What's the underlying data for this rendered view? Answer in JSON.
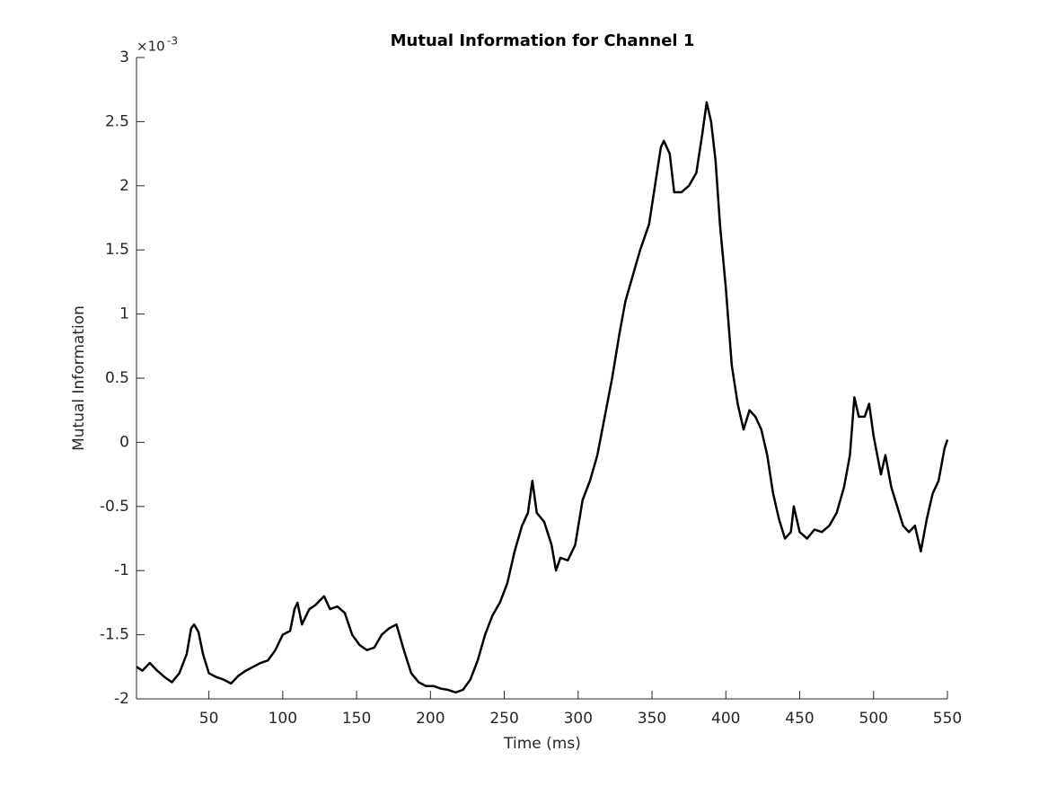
{
  "chart_data": {
    "type": "line",
    "title": "Mutual Information for Channel 1",
    "x_label": "Time (ms)",
    "y_label": "Mutual Information",
    "y_exponent_base": "×10",
    "y_exponent": "-3",
    "xlim": [
      1,
      550
    ],
    "ylim": [
      -2,
      3
    ],
    "xticks": [
      50,
      100,
      150,
      200,
      250,
      300,
      350,
      400,
      450,
      500,
      550
    ],
    "yticks": [
      -2,
      -1.5,
      -1,
      -0.5,
      0,
      0.5,
      1,
      1.5,
      2,
      2.5,
      3
    ],
    "x": [
      1,
      5,
      10,
      15,
      20,
      25,
      30,
      35,
      38,
      40,
      43,
      46,
      50,
      55,
      60,
      65,
      70,
      75,
      80,
      85,
      90,
      95,
      100,
      105,
      108,
      110,
      113,
      118,
      122,
      128,
      132,
      137,
      142,
      147,
      152,
      157,
      162,
      167,
      172,
      177,
      182,
      187,
      192,
      197,
      202,
      207,
      212,
      217,
      222,
      227,
      232,
      237,
      242,
      247,
      252,
      257,
      262,
      266,
      269,
      272,
      277,
      282,
      285,
      288,
      293,
      298,
      303,
      308,
      313,
      318,
      323,
      328,
      332,
      337,
      342,
      345,
      348,
      352,
      356,
      358,
      362,
      365,
      370,
      375,
      380,
      384,
      387,
      390,
      393,
      396,
      400,
      404,
      408,
      412,
      416,
      420,
      424,
      428,
      432,
      436,
      440,
      444,
      446,
      450,
      455,
      460,
      465,
      470,
      475,
      480,
      484,
      487,
      490,
      494,
      497,
      500,
      505,
      508,
      512,
      516,
      520,
      524,
      528,
      532,
      536,
      540,
      544,
      548,
      550
    ],
    "series": [
      {
        "name": "Channel 1",
        "color": "#000000",
        "values": [
          -1.75,
          -1.78,
          -1.72,
          -1.78,
          -1.83,
          -1.87,
          -1.8,
          -1.65,
          -1.45,
          -1.42,
          -1.48,
          -1.65,
          -1.8,
          -1.83,
          -1.85,
          -1.88,
          -1.82,
          -1.78,
          -1.75,
          -1.72,
          -1.7,
          -1.62,
          -1.5,
          -1.47,
          -1.3,
          -1.25,
          -1.42,
          -1.3,
          -1.27,
          -1.2,
          -1.3,
          -1.28,
          -1.33,
          -1.5,
          -1.58,
          -1.62,
          -1.6,
          -1.5,
          -1.45,
          -1.42,
          -1.62,
          -1.8,
          -1.87,
          -1.9,
          -1.9,
          -1.92,
          -1.93,
          -1.95,
          -1.93,
          -1.85,
          -1.7,
          -1.5,
          -1.35,
          -1.25,
          -1.1,
          -0.85,
          -0.65,
          -0.55,
          -0.3,
          -0.55,
          -0.62,
          -0.8,
          -1.0,
          -0.9,
          -0.92,
          -0.8,
          -0.45,
          -0.3,
          -0.1,
          0.2,
          0.5,
          0.85,
          1.1,
          1.3,
          1.5,
          1.6,
          1.7,
          2.0,
          2.3,
          2.35,
          2.25,
          1.95,
          1.95,
          2.0,
          2.1,
          2.4,
          2.65,
          2.5,
          2.2,
          1.7,
          1.2,
          0.6,
          0.3,
          0.1,
          0.25,
          0.2,
          0.1,
          -0.1,
          -0.4,
          -0.6,
          -0.75,
          -0.7,
          -0.5,
          -0.7,
          -0.75,
          -0.68,
          -0.7,
          -0.65,
          -0.55,
          -0.35,
          -0.1,
          0.35,
          0.2,
          0.2,
          0.3,
          0.05,
          -0.25,
          -0.1,
          -0.35,
          -0.5,
          -0.65,
          -0.7,
          -0.65,
          -0.85,
          -0.6,
          -0.4,
          -0.3,
          -0.05,
          0.02
        ]
      }
    ]
  }
}
